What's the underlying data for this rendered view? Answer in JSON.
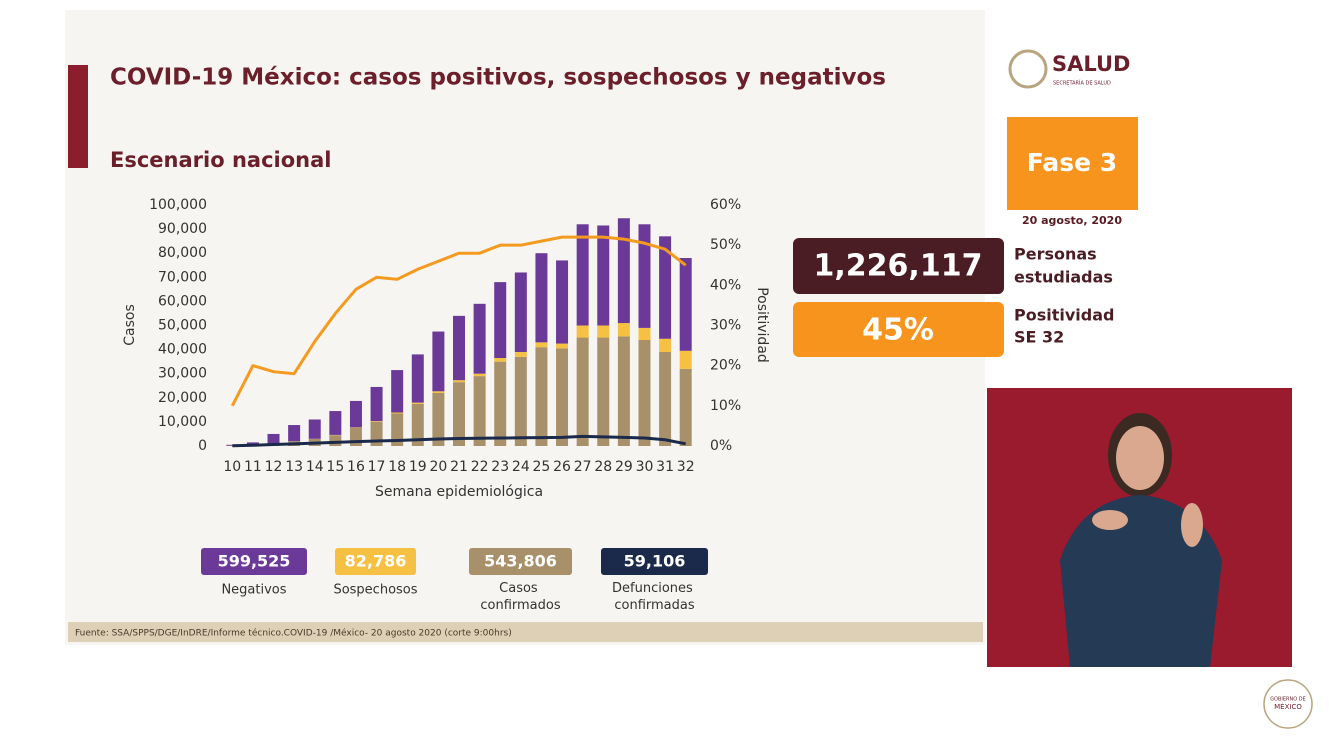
{
  "header": {
    "title": "COVID-19 México: casos positivos, sospechosos y negativos",
    "subtitle": "Escenario nacional",
    "logo": "SALUD",
    "logo_sub": "SECRETARÍA DE SALUD"
  },
  "chart_data": {
    "type": "bar",
    "stacked": true,
    "x_label": "Semana epidemiológica",
    "y_label": "Casos",
    "y2_label": "Positividad",
    "categories": [
      "10",
      "11",
      "12",
      "13",
      "14",
      "15",
      "16",
      "17",
      "18",
      "19",
      "20",
      "21",
      "22",
      "23",
      "24",
      "25",
      "26",
      "27",
      "28",
      "29",
      "30",
      "31",
      "32"
    ],
    "series": [
      {
        "name": "Casos confirmados",
        "color": "#a8916a",
        "total_label": "543,806",
        "values": [
          200,
          500,
          1000,
          2000,
          3000,
          4500,
          7500,
          10000,
          13500,
          17500,
          22000,
          26500,
          29000,
          35000,
          37000,
          41000,
          40500,
          45000,
          45000,
          45500,
          44000,
          39000,
          32000
        ]
      },
      {
        "name": "Sospechosos",
        "color": "#f6c142",
        "total_label": "82,786",
        "values": [
          0,
          0,
          0,
          0,
          0,
          100,
          200,
          300,
          400,
          500,
          700,
          800,
          1000,
          1500,
          2000,
          2000,
          2000,
          5000,
          5000,
          5500,
          5000,
          5500,
          7500
        ]
      },
      {
        "name": "Negativos",
        "color": "#6b3a99",
        "total_label": "599,525",
        "values": [
          300,
          1000,
          4000,
          6700,
          8000,
          9900,
          11000,
          14200,
          17600,
          20000,
          24800,
          26700,
          29000,
          31500,
          33000,
          37000,
          34500,
          42000,
          41500,
          43500,
          43000,
          42500,
          38500
        ]
      },
      {
        "name": "Defunciones confirmadas",
        "type": "line",
        "color": "#1b2a4a",
        "total_label": "59,106",
        "values": [
          100,
          300,
          600,
          900,
          1200,
          1500,
          1800,
          2100,
          2300,
          2600,
          2900,
          3100,
          3200,
          3300,
          3400,
          3500,
          3600,
          4000,
          3800,
          3600,
          3300,
          2600,
          900
        ]
      },
      {
        "type": "line",
        "axis": "y2",
        "color": "#f39a1f",
        "values": [
          10,
          20,
          18.5,
          18,
          26,
          33,
          39,
          42,
          41.5,
          44,
          46,
          48,
          48,
          50,
          50,
          51,
          52,
          52,
          52,
          51.5,
          50.5,
          49,
          45
        ]
      }
    ],
    "ylim": [
      0,
      100000
    ],
    "yticks": [
      {
        "value": 0,
        "label": "0"
      },
      {
        "value": 10000,
        "label": "10,000"
      },
      {
        "value": 20000,
        "label": "20,000"
      },
      {
        "value": 30000,
        "label": "30,000"
      },
      {
        "value": 40000,
        "label": "40,000"
      },
      {
        "value": 50000,
        "label": "50,000"
      },
      {
        "value": 60000,
        "label": "60,000"
      },
      {
        "value": 70000,
        "label": "70,000"
      },
      {
        "value": 80000,
        "label": "80,000"
      },
      {
        "value": 90000,
        "label": "90,000"
      },
      {
        "value": 100000,
        "label": "100,000"
      }
    ],
    "y2lim": [
      0,
      60
    ],
    "y2ticks": [
      {
        "value": 0,
        "label": "0%"
      },
      {
        "value": 10,
        "label": "10%"
      },
      {
        "value": 20,
        "label": "20%"
      },
      {
        "value": 30,
        "label": "30%"
      },
      {
        "value": 40,
        "label": "40%"
      },
      {
        "value": 50,
        "label": "50%"
      },
      {
        "value": 60,
        "label": "60%"
      }
    ],
    "grid": false
  },
  "panel": {
    "phase": "Fase 3",
    "date": "20 agosto, 2020",
    "studied_value": "1,226,117",
    "studied_label": [
      "Personas",
      "estudiadas"
    ],
    "positivity_value": "45%",
    "positivity_label": [
      "Positividad",
      "SE 32"
    ]
  },
  "footer": {
    "source": "Fuente: SSA/SPPS/DGE/InDRE/Informe técnico.COVID-19 /México- 20 agosto 2020 (corte 9:00hrs)",
    "brand": [
      "GOBIERNO DE",
      "MÉXICO"
    ]
  }
}
